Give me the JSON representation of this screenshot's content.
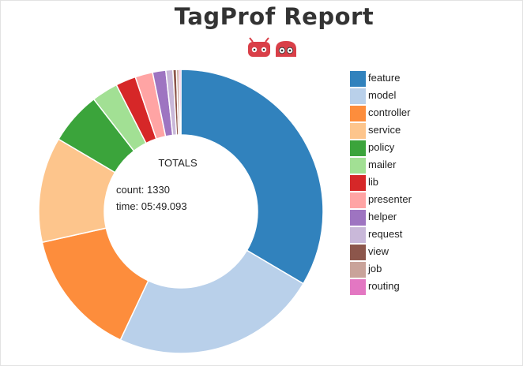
{
  "chart_data": {
    "type": "pie",
    "title": "TagProf Report",
    "center_label": {
      "title": "TOTALS",
      "count": "count: 1330",
      "time": "time: 05:49.093"
    },
    "categories": [
      "feature",
      "model",
      "controller",
      "service",
      "policy",
      "mailer",
      "lib",
      "presenter",
      "helper",
      "request",
      "view",
      "job",
      "routing"
    ],
    "values": [
      33.5,
      23.5,
      14.5,
      12.0,
      6.0,
      3.0,
      2.3,
      2.0,
      1.5,
      0.8,
      0.4,
      0.3,
      0.2
    ],
    "colors": [
      "#3182bd",
      "#b9d0ea",
      "#fd8d3c",
      "#fdc58c",
      "#3ba43b",
      "#a2e094",
      "#d62728",
      "#ffa4a4",
      "#9e74c1",
      "#c9b8d9",
      "#8c564b",
      "#c9a39a",
      "#e377c2"
    ],
    "legend_position": "right",
    "donut": true
  },
  "logo": {
    "icon": "robot-faces-icon",
    "color": "#d93f48"
  }
}
